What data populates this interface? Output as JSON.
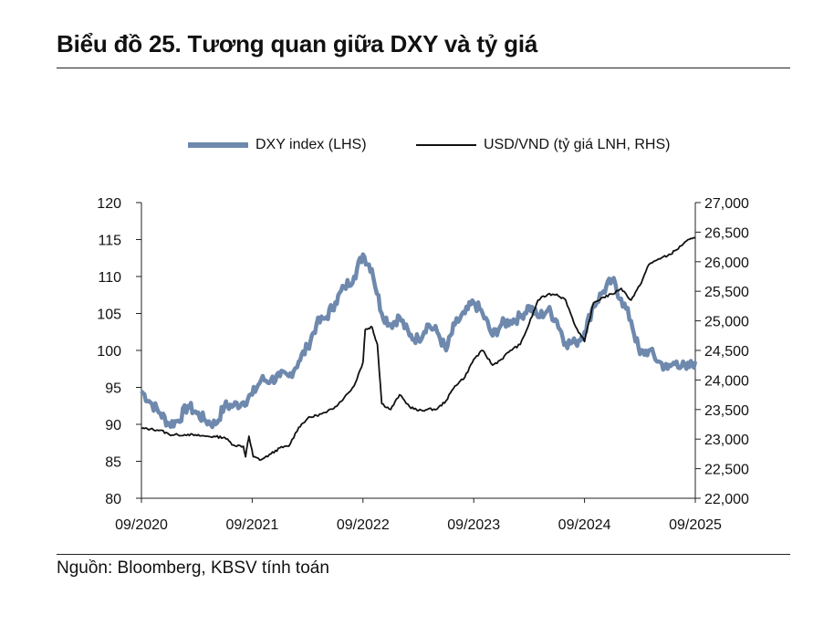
{
  "title": "Biểu đồ 25. Tương quan giữa DXY và tỷ giá",
  "source": "Nguồn: Bloomberg, KBSV tính toán",
  "colors": {
    "dxy": "#6e89ad",
    "usdvnd": "#111111",
    "axis": "#222222"
  },
  "chart_data": {
    "type": "line",
    "title": "Biểu đồ 25. Tương quan giữa DXY và tỷ giá",
    "legend": "top-center",
    "x_ticks": [
      "09/2020",
      "09/2021",
      "09/2022",
      "09/2023",
      "09/2024",
      "09/2025"
    ],
    "x_range": [
      2020.75,
      2025.75
    ],
    "left_axis": {
      "ylim": [
        80,
        120
      ],
      "ticks": [
        "120",
        "115",
        "110",
        "105",
        "100",
        "95",
        "90",
        "85",
        "80"
      ]
    },
    "right_axis": {
      "ylim": [
        22000,
        27000
      ],
      "ticks": [
        "27,000",
        "26,500",
        "26,000",
        "25,500",
        "25,000",
        "24,500",
        "24,000",
        "23,500",
        "23,000",
        "22,500",
        "22,000"
      ]
    },
    "series": [
      {
        "name": "DXY index (LHS)",
        "axis": "left",
        "points": [
          [
            2020.75,
            94.5
          ],
          [
            2020.83,
            93.0
          ],
          [
            2020.92,
            91.5
          ],
          [
            2021.0,
            90.0
          ],
          [
            2021.08,
            90.5
          ],
          [
            2021.17,
            92.5
          ],
          [
            2021.25,
            91.5
          ],
          [
            2021.33,
            90.5
          ],
          [
            2021.42,
            90.0
          ],
          [
            2021.5,
            92.5
          ],
          [
            2021.58,
            92.5
          ],
          [
            2021.67,
            93.0
          ],
          [
            2021.75,
            94.0
          ],
          [
            2021.83,
            96.0
          ],
          [
            2021.92,
            96.0
          ],
          [
            2022.0,
            96.5
          ],
          [
            2022.08,
            96.5
          ],
          [
            2022.17,
            98.5
          ],
          [
            2022.25,
            100.5
          ],
          [
            2022.33,
            103.5
          ],
          [
            2022.42,
            104.5
          ],
          [
            2022.5,
            106.5
          ],
          [
            2022.58,
            108.5
          ],
          [
            2022.67,
            110.0
          ],
          [
            2022.75,
            113.0
          ],
          [
            2022.83,
            111.0
          ],
          [
            2022.92,
            105.0
          ],
          [
            2023.0,
            103.5
          ],
          [
            2023.08,
            104.5
          ],
          [
            2023.17,
            102.0
          ],
          [
            2023.25,
            101.5
          ],
          [
            2023.33,
            103.5
          ],
          [
            2023.42,
            102.5
          ],
          [
            2023.5,
            100.0
          ],
          [
            2023.58,
            103.5
          ],
          [
            2023.67,
            105.0
          ],
          [
            2023.75,
            106.5
          ],
          [
            2023.83,
            105.0
          ],
          [
            2023.92,
            102.0
          ],
          [
            2024.0,
            103.5
          ],
          [
            2024.08,
            104.0
          ],
          [
            2024.17,
            104.5
          ],
          [
            2024.25,
            106.0
          ],
          [
            2024.33,
            104.5
          ],
          [
            2024.42,
            105.5
          ],
          [
            2024.5,
            104.0
          ],
          [
            2024.58,
            101.0
          ],
          [
            2024.67,
            101.0
          ],
          [
            2024.75,
            102.5
          ],
          [
            2024.83,
            106.0
          ],
          [
            2024.92,
            108.0
          ],
          [
            2025.0,
            109.5
          ],
          [
            2025.08,
            107.0
          ],
          [
            2025.17,
            104.0
          ],
          [
            2025.25,
            99.5
          ],
          [
            2025.33,
            100.0
          ],
          [
            2025.42,
            98.5
          ],
          [
            2025.5,
            97.5
          ],
          [
            2025.58,
            98.5
          ],
          [
            2025.67,
            97.5
          ],
          [
            2025.75,
            98.5
          ]
        ]
      },
      {
        "name": "USD/VND (tỷ giá LNH, RHS)",
        "axis": "right",
        "points": [
          [
            2020.75,
            23180
          ],
          [
            2020.83,
            23170
          ],
          [
            2020.92,
            23150
          ],
          [
            2021.0,
            23080
          ],
          [
            2021.08,
            23070
          ],
          [
            2021.17,
            23080
          ],
          [
            2021.25,
            23060
          ],
          [
            2021.33,
            23050
          ],
          [
            2021.42,
            23040
          ],
          [
            2021.5,
            23030
          ],
          [
            2021.58,
            22900
          ],
          [
            2021.67,
            22880
          ],
          [
            2021.69,
            22700
          ],
          [
            2021.72,
            23050
          ],
          [
            2021.76,
            22700
          ],
          [
            2021.83,
            22650
          ],
          [
            2021.92,
            22750
          ],
          [
            2022.0,
            22850
          ],
          [
            2022.08,
            22880
          ],
          [
            2022.17,
            23200
          ],
          [
            2022.25,
            23350
          ],
          [
            2022.33,
            23400
          ],
          [
            2022.42,
            23450
          ],
          [
            2022.5,
            23550
          ],
          [
            2022.58,
            23700
          ],
          [
            2022.67,
            23900
          ],
          [
            2022.75,
            24300
          ],
          [
            2022.77,
            24850
          ],
          [
            2022.83,
            24900
          ],
          [
            2022.88,
            24600
          ],
          [
            2022.92,
            23600
          ],
          [
            2023.0,
            23500
          ],
          [
            2023.08,
            23750
          ],
          [
            2023.17,
            23550
          ],
          [
            2023.25,
            23480
          ],
          [
            2023.33,
            23500
          ],
          [
            2023.42,
            23510
          ],
          [
            2023.5,
            23650
          ],
          [
            2023.58,
            23900
          ],
          [
            2023.67,
            24050
          ],
          [
            2023.75,
            24350
          ],
          [
            2023.83,
            24500
          ],
          [
            2023.92,
            24250
          ],
          [
            2024.0,
            24350
          ],
          [
            2024.08,
            24500
          ],
          [
            2024.17,
            24600
          ],
          [
            2024.25,
            24950
          ],
          [
            2024.33,
            25350
          ],
          [
            2024.42,
            25450
          ],
          [
            2024.5,
            25450
          ],
          [
            2024.58,
            25350
          ],
          [
            2024.67,
            24900
          ],
          [
            2024.75,
            24650
          ],
          [
            2024.83,
            25300
          ],
          [
            2024.92,
            25400
          ],
          [
            2025.0,
            25450
          ],
          [
            2025.08,
            25550
          ],
          [
            2025.17,
            25350
          ],
          [
            2025.25,
            25600
          ],
          [
            2025.33,
            25950
          ],
          [
            2025.42,
            26050
          ],
          [
            2025.5,
            26100
          ],
          [
            2025.58,
            26200
          ],
          [
            2025.67,
            26350
          ],
          [
            2025.75,
            26400
          ]
        ]
      }
    ]
  }
}
